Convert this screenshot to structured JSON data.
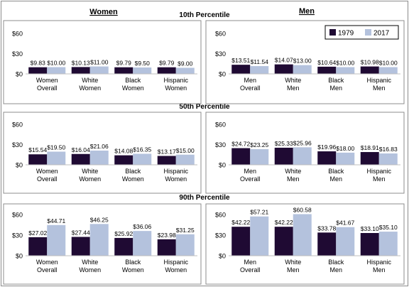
{
  "headers": {
    "women": "Women",
    "men": "Men",
    "p10": "10th Percentile",
    "p50": "50th Percentile",
    "p90": "90th Percentile"
  },
  "colors": {
    "s1979": "#1f0a33",
    "s2017": "#b4c2dd"
  },
  "chart_data": [
    {
      "type": "bar",
      "panel": "10th-women",
      "categories": [
        "Women Overall",
        "White Women",
        "Black Women",
        "Hispanic Women"
      ],
      "series": [
        {
          "name": "1979",
          "values": [
            9.83,
            10.13,
            9.79,
            9.79
          ],
          "labels": [
            "$9.83",
            "$10.13",
            "$9.79",
            "$9.79"
          ]
        },
        {
          "name": "2017",
          "values": [
            10.0,
            11.0,
            9.5,
            9.0
          ],
          "labels": [
            "$10.00",
            "$11.00",
            "$9.50",
            "$9.00"
          ]
        }
      ],
      "yticks": [
        "$60",
        "$30",
        "$0"
      ],
      "ylim": [
        0,
        60
      ]
    },
    {
      "type": "bar",
      "panel": "10th-men",
      "categories": [
        "Men Overall",
        "White Men",
        "Black Men",
        "Hispanic Men"
      ],
      "series": [
        {
          "name": "1979",
          "values": [
            13.51,
            14.07,
            10.64,
            10.98
          ],
          "labels": [
            "$13.51",
            "$14.07",
            "$10.64",
            "$10.98"
          ]
        },
        {
          "name": "2017",
          "values": [
            11.54,
            13.0,
            10.0,
            10.0
          ],
          "labels": [
            "$11.54",
            "$13.00",
            "$10.00",
            "$10.00"
          ]
        }
      ],
      "yticks": [
        "$60",
        "$30",
        "$0"
      ],
      "ylim": [
        0,
        60
      ],
      "legend": {
        "placement": "top-right",
        "items": [
          "1979",
          "2017"
        ]
      }
    },
    {
      "type": "bar",
      "panel": "50th-women",
      "categories": [
        "Women Overall",
        "White Women",
        "Black Women",
        "Hispanic Women"
      ],
      "series": [
        {
          "name": "1979",
          "values": [
            15.54,
            16.04,
            14.08,
            13.17
          ],
          "labels": [
            "$15.54",
            "$16.04",
            "$14.08",
            "$13.17"
          ]
        },
        {
          "name": "2017",
          "values": [
            19.5,
            21.06,
            16.35,
            15.0
          ],
          "labels": [
            "$19.50",
            "$21.06",
            "$16.35",
            "$15.00"
          ]
        }
      ],
      "yticks": [
        "$60",
        "$30",
        "$0"
      ],
      "ylim": [
        0,
        60
      ]
    },
    {
      "type": "bar",
      "panel": "50th-men",
      "categories": [
        "Men Overall",
        "White Men",
        "Black Men",
        "Hispanic Men"
      ],
      "series": [
        {
          "name": "1979",
          "values": [
            24.72,
            25.33,
            19.96,
            18.91
          ],
          "labels": [
            "$24.72",
            "$25.33",
            "$19.96",
            "$18.91"
          ]
        },
        {
          "name": "2017",
          "values": [
            23.25,
            25.96,
            18.0,
            16.83
          ],
          "labels": [
            "$23.25",
            "$25.96",
            "$18.00",
            "$16.83"
          ]
        }
      ],
      "yticks": [
        "$60",
        "$30",
        "$0"
      ],
      "ylim": [
        0,
        60
      ]
    },
    {
      "type": "bar",
      "panel": "90th-women",
      "categories": [
        "Women Overall",
        "White Women",
        "Black Women",
        "Hispanic Women"
      ],
      "series": [
        {
          "name": "1979",
          "values": [
            27.02,
            27.44,
            25.92,
            23.98
          ],
          "labels": [
            "$27.02",
            "$27.44",
            "$25.92",
            "$23.98"
          ]
        },
        {
          "name": "2017",
          "values": [
            44.71,
            46.25,
            36.06,
            31.25
          ],
          "labels": [
            "$44.71",
            "$46.25",
            "$36.06",
            "$31.25"
          ]
        }
      ],
      "yticks": [
        "$60",
        "$30",
        "$0"
      ],
      "ylim": [
        0,
        60
      ]
    },
    {
      "type": "bar",
      "panel": "90th-men",
      "categories": [
        "Men Overall",
        "White Men",
        "Black Men",
        "Hispanic Men"
      ],
      "series": [
        {
          "name": "1979",
          "values": [
            42.22,
            42.22,
            33.78,
            33.1
          ],
          "labels": [
            "$42.22",
            "$42.22",
            "$33.78",
            "$33.10"
          ]
        },
        {
          "name": "2017",
          "values": [
            57.21,
            60.58,
            41.67,
            35.1
          ],
          "labels": [
            "$57.21",
            "$60.58",
            "$41.67",
            "$35.10"
          ]
        }
      ],
      "yticks": [
        "$60",
        "$30",
        "$0"
      ],
      "ylim": [
        0,
        60
      ]
    }
  ]
}
